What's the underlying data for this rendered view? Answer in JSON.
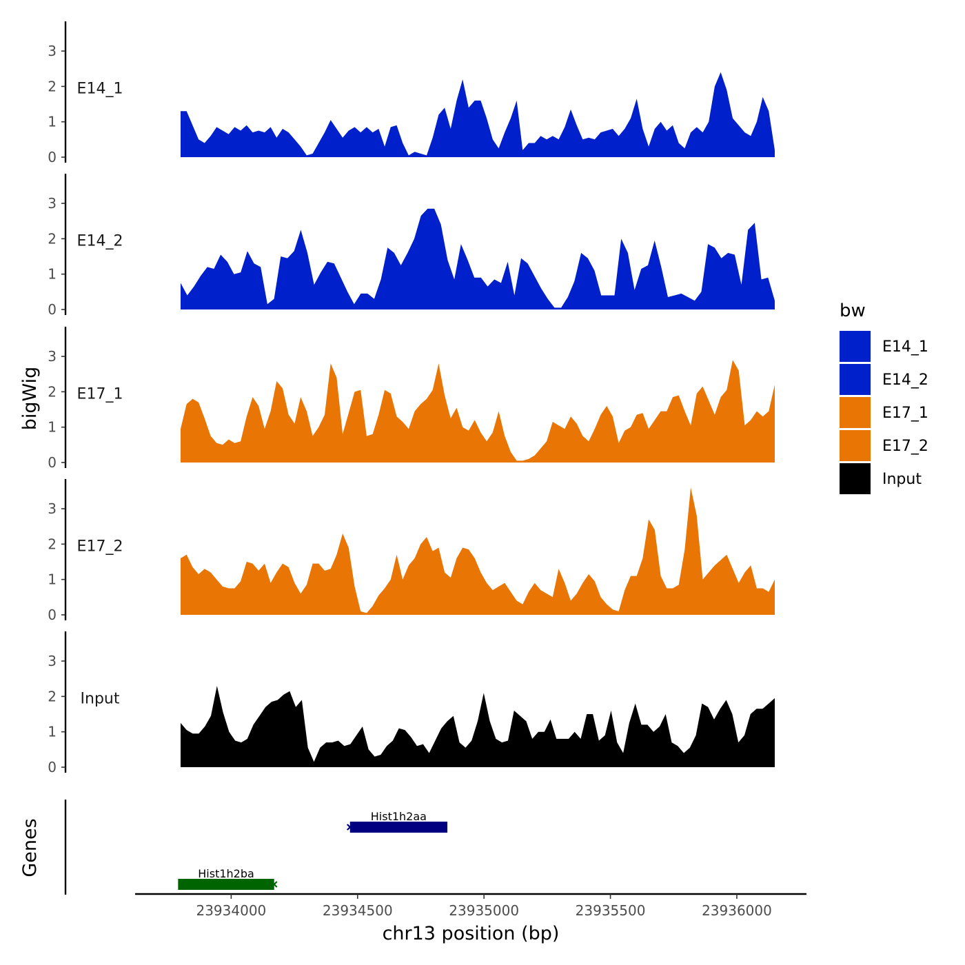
{
  "chart_data": {
    "type": "area",
    "chromosome": "chr13",
    "xlabel": "chr13 position (bp)",
    "ylabel": "bigWig",
    "genes_label": "Genes",
    "xlim": [
      23933620,
      23936270
    ],
    "x_start": 23933800,
    "x_end": 23936150,
    "x_ticks": [
      23934000,
      23934500,
      23935000,
      23935500,
      23936000
    ],
    "x_tick_labels": [
      "23934000",
      "23934500",
      "23935000",
      "23935500",
      "23936000"
    ],
    "ylim": [
      0,
      3.8
    ],
    "y_ticks": [
      0,
      1,
      2,
      3
    ],
    "y_tick_labels": [
      "0",
      "1",
      "2",
      "3"
    ],
    "legend": {
      "title": "bw",
      "items": [
        {
          "label": "E14_1",
          "color": "#0020CC"
        },
        {
          "label": "E14_2",
          "color": "#0020CC"
        },
        {
          "label": "E17_1",
          "color": "#E87504"
        },
        {
          "label": "E17_2",
          "color": "#E87504"
        },
        {
          "label": "Input",
          "color": "#000000"
        }
      ]
    },
    "series": [
      {
        "name": "E14_1",
        "color": "#0020CC",
        "values": [
          1.3,
          1.3,
          0.9,
          0.5,
          0.4,
          0.6,
          0.85,
          0.75,
          0.65,
          0.85,
          0.75,
          0.9,
          0.7,
          0.75,
          0.7,
          0.85,
          0.55,
          0.8,
          0.7,
          0.5,
          0.3,
          0.05,
          0.1,
          0.4,
          0.7,
          1.05,
          0.8,
          0.55,
          0.75,
          0.85,
          0.7,
          0.85,
          0.7,
          0.8,
          0.3,
          0.85,
          0.9,
          0.4,
          0.05,
          0.15,
          0.1,
          0.05,
          0.55,
          1.2,
          1.4,
          0.8,
          1.6,
          2.2,
          1.4,
          1.6,
          1.6,
          1.1,
          0.5,
          0.25,
          0.7,
          1.1,
          1.6,
          0.2,
          0.4,
          0.4,
          0.6,
          0.5,
          0.6,
          0.5,
          0.85,
          1.35,
          0.9,
          0.5,
          0.55,
          0.5,
          0.7,
          0.75,
          0.8,
          0.6,
          0.8,
          1.1,
          1.65,
          0.8,
          0.3,
          0.8,
          1.0,
          0.75,
          0.9,
          0.4,
          0.25,
          0.7,
          0.85,
          0.7,
          1.0,
          2.0,
          2.4,
          1.9,
          1.1,
          0.9,
          0.7,
          0.6,
          1.0,
          1.7,
          1.3,
          0.2
        ]
      },
      {
        "name": "E14_2",
        "color": "#0020CC",
        "values": [
          0.75,
          0.4,
          0.65,
          0.95,
          1.2,
          1.15,
          1.55,
          1.35,
          1.0,
          1.05,
          1.65,
          1.3,
          1.2,
          0.15,
          0.3,
          1.5,
          1.45,
          1.65,
          2.25,
          1.6,
          0.7,
          1.05,
          1.35,
          1.3,
          0.9,
          0.5,
          0.15,
          0.45,
          0.45,
          0.3,
          0.85,
          1.75,
          1.6,
          1.25,
          1.6,
          2.0,
          2.65,
          2.85,
          2.85,
          2.4,
          1.4,
          0.85,
          1.85,
          1.4,
          0.9,
          0.9,
          0.65,
          0.85,
          0.75,
          1.35,
          0.4,
          1.45,
          1.3,
          0.95,
          0.6,
          0.3,
          0.05,
          0.05,
          0.35,
          0.8,
          1.6,
          1.45,
          1.1,
          0.4,
          0.4,
          0.4,
          2.0,
          1.6,
          0.55,
          1.15,
          1.25,
          1.95,
          1.2,
          0.35,
          0.4,
          0.45,
          0.35,
          0.25,
          0.5,
          1.85,
          1.75,
          1.45,
          1.6,
          1.55,
          0.7,
          2.25,
          2.45,
          0.85,
          0.9,
          0.25
        ]
      },
      {
        "name": "E17_1",
        "color": "#E87504",
        "values": [
          0.95,
          1.65,
          1.8,
          1.7,
          1.25,
          0.75,
          0.55,
          0.5,
          0.65,
          0.55,
          0.6,
          1.3,
          1.85,
          1.6,
          0.95,
          1.45,
          2.3,
          2.1,
          1.35,
          1.1,
          1.85,
          1.45,
          0.75,
          1.0,
          1.35,
          2.8,
          2.4,
          0.8,
          1.4,
          2.0,
          2.05,
          0.75,
          0.8,
          1.35,
          2.05,
          1.95,
          1.3,
          1.15,
          0.95,
          1.45,
          1.65,
          1.8,
          2.05,
          2.8,
          1.9,
          1.25,
          1.55,
          1.0,
          0.9,
          1.2,
          0.85,
          0.6,
          0.85,
          1.45,
          0.75,
          0.3,
          0.05,
          0.05,
          0.1,
          0.2,
          0.4,
          0.6,
          1.15,
          1.05,
          0.95,
          1.3,
          1.1,
          0.75,
          0.6,
          0.95,
          1.35,
          1.6,
          1.3,
          0.55,
          0.9,
          1.0,
          1.35,
          1.4,
          0.95,
          1.2,
          1.45,
          1.45,
          1.85,
          1.9,
          1.45,
          1.05,
          1.95,
          2.15,
          1.75,
          1.35,
          1.85,
          2.05,
          2.9,
          2.6,
          1.05,
          1.2,
          1.45,
          1.3,
          1.45,
          2.2
        ]
      },
      {
        "name": "E17_2",
        "color": "#E87504",
        "values": [
          1.6,
          1.7,
          1.35,
          1.15,
          1.3,
          1.2,
          1.0,
          0.8,
          0.75,
          0.75,
          0.95,
          1.5,
          1.45,
          1.25,
          1.45,
          0.9,
          1.2,
          1.45,
          1.35,
          0.9,
          0.6,
          0.85,
          1.45,
          1.45,
          1.25,
          1.3,
          1.7,
          2.3,
          1.9,
          0.8,
          0.1,
          0.05,
          0.25,
          0.55,
          0.75,
          1.0,
          1.7,
          1.0,
          1.4,
          1.6,
          2.0,
          2.2,
          1.8,
          1.9,
          1.2,
          1.05,
          1.6,
          1.9,
          1.85,
          1.6,
          1.2,
          0.9,
          0.7,
          0.8,
          0.9,
          0.65,
          0.4,
          0.3,
          0.65,
          0.9,
          0.7,
          0.6,
          0.5,
          1.3,
          0.9,
          0.4,
          0.6,
          0.9,
          1.15,
          0.95,
          0.5,
          0.3,
          0.15,
          0.1,
          0.7,
          1.1,
          1.1,
          1.6,
          2.7,
          2.4,
          1.1,
          0.75,
          0.75,
          0.85,
          1.85,
          3.6,
          2.8,
          1.0,
          1.2,
          1.4,
          1.55,
          1.7,
          1.3,
          0.9,
          1.2,
          1.4,
          0.75,
          0.75,
          0.65,
          1.0
        ]
      },
      {
        "name": "Input",
        "color": "#000000",
        "values": [
          1.25,
          1.05,
          0.95,
          0.95,
          1.15,
          1.45,
          2.3,
          1.55,
          1.0,
          0.75,
          0.7,
          0.8,
          1.2,
          1.45,
          1.7,
          1.85,
          1.9,
          2.05,
          2.15,
          1.7,
          1.9,
          0.55,
          0.15,
          0.55,
          0.7,
          0.7,
          0.75,
          0.6,
          0.65,
          0.9,
          1.15,
          0.5,
          0.3,
          0.35,
          0.6,
          0.75,
          1.1,
          1.05,
          0.85,
          0.6,
          0.65,
          0.4,
          0.75,
          1.1,
          1.3,
          1.45,
          0.7,
          0.55,
          0.75,
          1.3,
          2.1,
          1.3,
          0.8,
          0.7,
          0.75,
          1.6,
          1.45,
          1.3,
          0.8,
          1.0,
          1.0,
          1.35,
          0.8,
          0.8,
          0.8,
          1.0,
          0.8,
          1.5,
          1.5,
          0.75,
          0.9,
          1.6,
          0.7,
          0.4,
          1.25,
          1.8,
          1.2,
          1.2,
          1.0,
          1.15,
          1.5,
          0.7,
          0.6,
          0.4,
          0.55,
          0.9,
          1.8,
          1.7,
          1.35,
          1.65,
          1.9,
          1.5,
          0.7,
          0.9,
          1.5,
          1.65,
          1.65,
          1.8,
          1.95
        ]
      }
    ],
    "genes": [
      {
        "name": "Hist1h2aa",
        "start": 23934470,
        "end": 23934855,
        "color": "#000080",
        "strand": "+",
        "row": 1
      },
      {
        "name": "Hist1h2ba",
        "start": 23933790,
        "end": 23934170,
        "color": "#006400",
        "strand": "-",
        "row": 2
      }
    ]
  }
}
